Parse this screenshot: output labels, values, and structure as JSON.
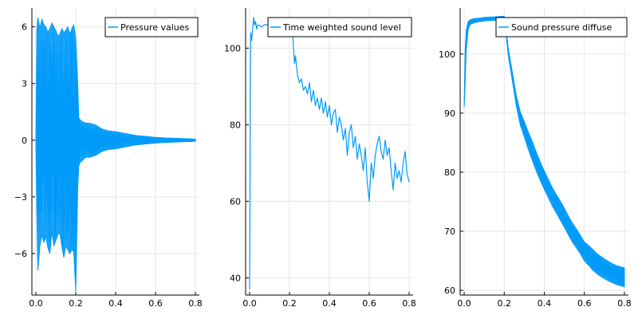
{
  "chart_data": [
    {
      "type": "line",
      "series": [
        {
          "name": "Pressure values",
          "x": [
            0.0,
            0.005,
            0.01,
            0.02,
            0.03,
            0.04,
            0.05,
            0.06,
            0.07,
            0.08,
            0.09,
            0.1,
            0.11,
            0.12,
            0.13,
            0.14,
            0.15,
            0.16,
            0.17,
            0.18,
            0.19,
            0.2,
            0.21,
            0.215,
            0.22,
            0.23,
            0.25,
            0.27,
            0.3,
            0.33,
            0.36,
            0.4,
            0.45,
            0.5,
            0.55,
            0.6,
            0.65,
            0.7,
            0.75,
            0.8
          ],
          "y_max": [
            0.0,
            5.8,
            6.5,
            5.9,
            6.4,
            6.1,
            6.0,
            5.7,
            5.9,
            6.2,
            6.0,
            5.8,
            5.5,
            5.6,
            5.9,
            5.7,
            5.8,
            6.0,
            5.6,
            5.9,
            6.1,
            5.4,
            3.0,
            1.2,
            1.1,
            1.0,
            0.9,
            0.9,
            0.8,
            0.6,
            0.5,
            0.45,
            0.35,
            0.25,
            0.2,
            0.15,
            0.12,
            0.1,
            0.08,
            0.06
          ],
          "y_min": [
            0.0,
            -4.0,
            -6.9,
            -5.6,
            -5.0,
            -5.4,
            -5.1,
            -5.7,
            -6.0,
            -4.8,
            -5.6,
            -5.3,
            -5.0,
            -4.9,
            -5.6,
            -6.2,
            -5.6,
            -5.8,
            -6.0,
            -5.8,
            -5.9,
            -8.0,
            -2.5,
            -1.4,
            -1.2,
            -1.1,
            -0.9,
            -0.9,
            -0.8,
            -0.6,
            -0.5,
            -0.45,
            -0.35,
            -0.25,
            -0.2,
            -0.15,
            -0.12,
            -0.1,
            -0.08,
            -0.06
          ]
        }
      ],
      "xlim": [
        -0.02,
        0.82
      ],
      "ylim": [
        -8.2,
        7.0
      ],
      "xticks": [
        0.0,
        0.2,
        0.4,
        0.6,
        0.8
      ],
      "xtick_labels": [
        "0.0",
        "0.2",
        "0.4",
        "0.6",
        "0.8"
      ],
      "yticks": [
        -6,
        -3,
        0,
        3,
        6
      ],
      "ytick_labels": [
        "−6",
        "−3",
        "0",
        "3",
        "6"
      ],
      "grid": true,
      "legend_position": "top-right",
      "color": "#009af9"
    },
    {
      "type": "line",
      "series": [
        {
          "name": "Time weighted sound level",
          "x": [
            0.0,
            0.002,
            0.004,
            0.006,
            0.01,
            0.015,
            0.02,
            0.025,
            0.03,
            0.035,
            0.04,
            0.05,
            0.06,
            0.07,
            0.08,
            0.09,
            0.1,
            0.12,
            0.14,
            0.16,
            0.18,
            0.2,
            0.215,
            0.22,
            0.225,
            0.23,
            0.24,
            0.25,
            0.26,
            0.27,
            0.28,
            0.29,
            0.3,
            0.31,
            0.32,
            0.33,
            0.34,
            0.35,
            0.36,
            0.37,
            0.38,
            0.39,
            0.4,
            0.41,
            0.42,
            0.43,
            0.44,
            0.45,
            0.46,
            0.47,
            0.48,
            0.49,
            0.5,
            0.51,
            0.52,
            0.53,
            0.54,
            0.55,
            0.56,
            0.57,
            0.58,
            0.59,
            0.6,
            0.61,
            0.62,
            0.63,
            0.64,
            0.65,
            0.66,
            0.67,
            0.68,
            0.69,
            0.7,
            0.71,
            0.72,
            0.73,
            0.74,
            0.75,
            0.76,
            0.77,
            0.78,
            0.79,
            0.8
          ],
          "y": [
            37,
            62,
            95,
            104,
            102,
            105,
            108,
            106,
            107,
            105,
            106,
            106,
            105.5,
            106,
            106.2,
            106,
            106.3,
            106.1,
            106.2,
            106.0,
            106.3,
            106.1,
            106.0,
            100,
            96,
            98,
            93,
            91,
            92,
            89,
            90,
            88,
            91,
            86,
            89,
            85,
            87,
            84,
            87,
            83,
            86,
            82,
            85,
            80,
            83,
            84,
            78,
            82,
            80,
            76,
            79,
            72,
            78,
            80,
            74,
            77,
            71,
            75,
            72,
            68,
            74,
            65,
            60,
            70,
            66,
            72,
            75,
            77,
            73,
            71,
            76,
            72,
            74,
            68,
            63,
            70,
            66,
            68,
            65,
            70,
            73,
            67,
            65
          ]
        }
      ],
      "xlim": [
        -0.02,
        0.82
      ],
      "ylim": [
        35.5,
        110.5
      ],
      "xticks": [
        0.0,
        0.2,
        0.4,
        0.6,
        0.8
      ],
      "xtick_labels": [
        "0.0",
        "0.2",
        "0.4",
        "0.6",
        "0.8"
      ],
      "yticks": [
        40,
        60,
        80,
        100
      ],
      "ytick_labels": [
        "40",
        "60",
        "80",
        "100"
      ],
      "grid": true,
      "legend_position": "top-right",
      "color": "#009af9"
    },
    {
      "type": "line",
      "series": [
        {
          "name": "Sound pressure diffuse",
          "x": [
            0.0,
            0.005,
            0.01,
            0.02,
            0.03,
            0.05,
            0.08,
            0.1,
            0.15,
            0.2,
            0.21,
            0.22,
            0.24,
            0.26,
            0.28,
            0.3,
            0.32,
            0.34,
            0.36,
            0.38,
            0.4,
            0.42,
            0.44,
            0.46,
            0.48,
            0.5,
            0.52,
            0.54,
            0.56,
            0.58,
            0.6,
            0.62,
            0.64,
            0.66,
            0.68,
            0.7,
            0.72,
            0.74,
            0.76,
            0.78,
            0.8
          ],
          "y_max": [
            91.0,
            100.5,
            104.0,
            105.5,
            105.8,
            106.0,
            106.1,
            106.2,
            106.3,
            106.4,
            104.0,
            101.0,
            97.0,
            93.0,
            90.2,
            88.6,
            86.8,
            85.2,
            83.4,
            81.7,
            80.2,
            78.8,
            77.4,
            76.2,
            75.1,
            73.9,
            72.6,
            71.4,
            70.4,
            69.3,
            68.2,
            67.6,
            67.0,
            66.3,
            65.8,
            65.3,
            64.9,
            64.5,
            64.2,
            64.0,
            63.8
          ],
          "y_min": [
            91.0,
            95.0,
            100.5,
            104.2,
            105.0,
            105.3,
            105.5,
            105.6,
            105.7,
            105.8,
            103.0,
            99.8,
            95.6,
            91.3,
            88.0,
            86.0,
            83.9,
            82.0,
            80.2,
            78.6,
            77.1,
            75.7,
            74.3,
            73.1,
            71.9,
            70.7,
            69.4,
            68.2,
            67.2,
            66.2,
            65.0,
            64.3,
            63.5,
            62.9,
            62.4,
            62.0,
            61.6,
            61.3,
            61.0,
            60.8,
            60.6
          ]
        }
      ],
      "xlim": [
        -0.02,
        0.82
      ],
      "ylim": [
        59.2,
        107.8
      ],
      "xticks": [
        0.0,
        0.2,
        0.4,
        0.6,
        0.8
      ],
      "xtick_labels": [
        "0.0",
        "0.2",
        "0.4",
        "0.6",
        "0.8"
      ],
      "yticks": [
        60,
        70,
        80,
        90,
        100
      ],
      "ytick_labels": [
        "60",
        "70",
        "80",
        "90",
        "100"
      ],
      "grid": true,
      "legend_position": "top-right",
      "color": "#009af9"
    }
  ]
}
